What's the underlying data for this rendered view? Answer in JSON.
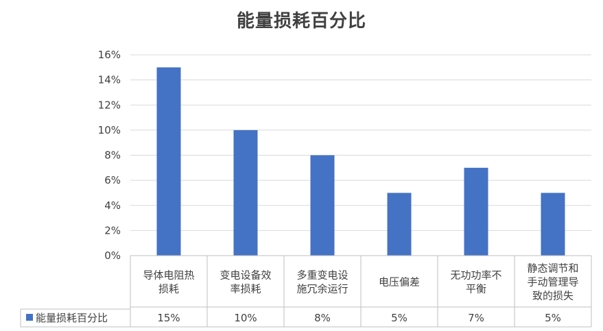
{
  "chart_data": {
    "type": "bar",
    "title": "能量损耗百分比",
    "categories": [
      [
        "导体电阻热",
        "损耗"
      ],
      [
        "变电设备效",
        "率损耗"
      ],
      [
        "多重变电设",
        "施冗余运行"
      ],
      [
        "电压偏差"
      ],
      [
        "无功功率不",
        "平衡"
      ],
      [
        "静态调节和",
        "手动管理导",
        "致的损失"
      ]
    ],
    "series": [
      {
        "name": "能量损耗百分比",
        "values": [
          15,
          10,
          8,
          5,
          7,
          5
        ],
        "labels": [
          "15%",
          "10%",
          "8%",
          "5%",
          "7%",
          "5%"
        ],
        "color": "#4472C4"
      }
    ],
    "ylim": [
      0,
      16
    ],
    "yticks": [
      "0%",
      "2%",
      "4%",
      "6%",
      "8%",
      "10%",
      "12%",
      "14%",
      "16%"
    ],
    "grid": true,
    "legend": "data-table-left",
    "grid_color": "#d9d9d9",
    "axis_color": "#bfbfbf"
  }
}
